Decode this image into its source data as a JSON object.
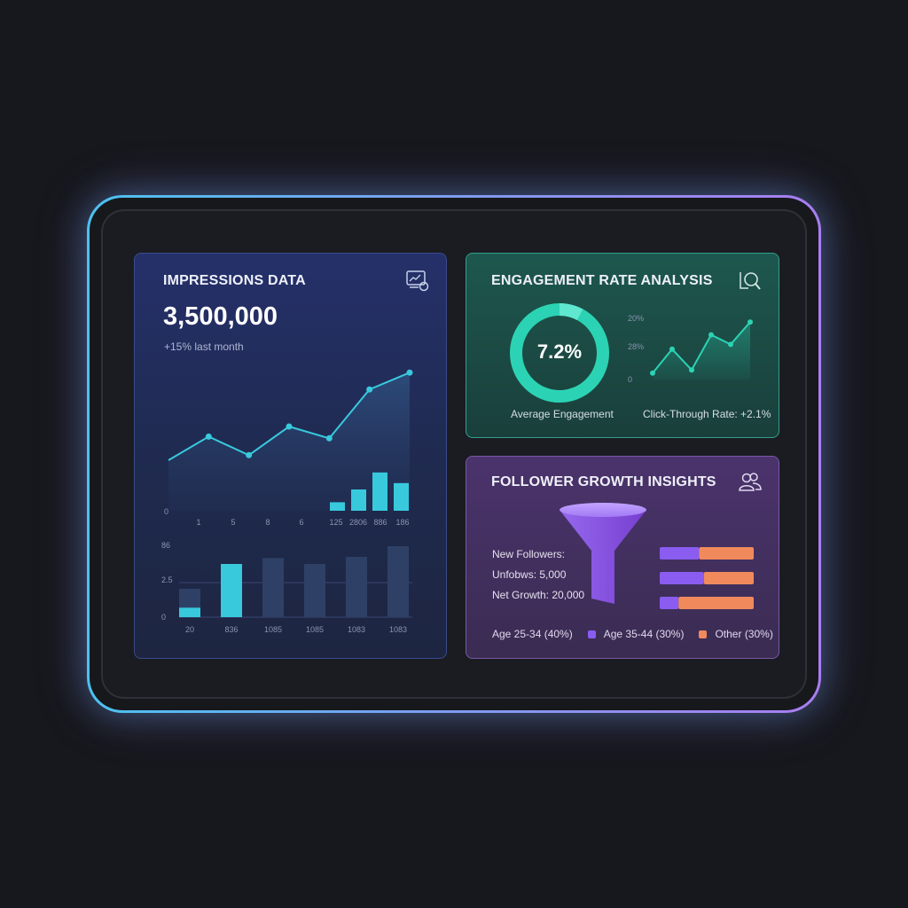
{
  "colors": {
    "accent_cyan": "#38c9dd",
    "accent_teal": "#2bd3b4",
    "accent_purple": "#8a5cf0",
    "accent_orange": "#f08a5d"
  },
  "impressions": {
    "title": "IMPRESSIONS DATA",
    "icon": "chart-monitor-icon",
    "value": "3,500,000",
    "change": "+15% last month",
    "line_chart": {
      "type": "line",
      "values": [
        3.0,
        4.4,
        3.3,
        5.0,
        4.3,
        7.2,
        8.2
      ],
      "ylim": [
        0,
        10
      ],
      "y_tick": "0"
    },
    "top_bars": {
      "type": "bar",
      "values": [
        0.8,
        2.0,
        3.6,
        2.6
      ],
      "ylim": [
        0,
        10
      ],
      "x_ticks": [
        "1",
        "5",
        "8",
        "6",
        "125",
        "2806",
        "886",
        "186"
      ]
    },
    "bottom_bars": {
      "type": "bar",
      "series": [
        {
          "values": [
            2.4,
            4.5,
            5.0,
            4.5,
            5.1,
            6.0
          ]
        },
        {
          "values": [
            0.8,
            4.5,
            0,
            0,
            0,
            0
          ]
        }
      ],
      "ylim": [
        0,
        7.5
      ],
      "y_ticks": [
        "86",
        "2.5",
        "0"
      ],
      "x_ticks": [
        "20",
        "836",
        "1085",
        "1085",
        "1083",
        "1083"
      ]
    }
  },
  "engagement": {
    "title": "ENGAGEMENT RATE ANALYSIS",
    "icon": "magnify-chart-icon",
    "donut_value": "7.2%",
    "donut_label": "Average Engagement",
    "ctr_label": "Click-Through Rate: +2.1%",
    "ctr_chart": {
      "type": "line",
      "values": [
        0.4,
        1.9,
        0.6,
        2.8,
        2.2,
        3.6
      ],
      "ylim": [
        0,
        4
      ],
      "y_ticks": [
        "20%",
        "28%",
        "0"
      ]
    }
  },
  "follower": {
    "title": "FOLLOWER GROWTH INSIGHTS",
    "icon": "users-icon",
    "new_followers": "New Followers:",
    "unfollows": "Unfobws:  5,000",
    "net_growth": "Net Growth: 20,000",
    "bars": [
      {
        "purple": 0.42,
        "orange": 0.58
      },
      {
        "purple": 0.47,
        "orange": 0.53
      },
      {
        "purple": 0.2,
        "orange": 0.8
      }
    ],
    "legend": {
      "age_25_34": "Age 25-34 (40%)",
      "age_35_44": "Age 35-44 (30%)",
      "other": "Other (30%)"
    }
  }
}
